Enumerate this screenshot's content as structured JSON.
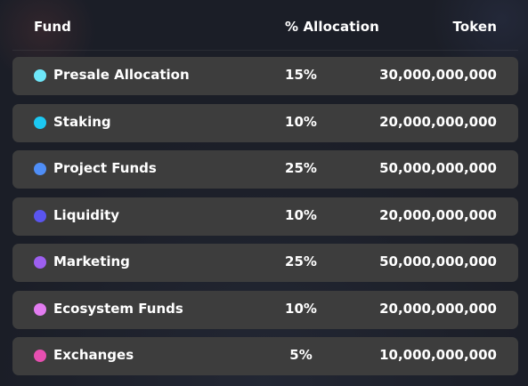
{
  "header": {
    "fund": "Fund",
    "allocation": "% Allocation",
    "token": "Token"
  },
  "rows": [
    {
      "name": "Presale Allocation",
      "allocation": "15%",
      "token": "30,000,000,000",
      "color": "#6ee7f9"
    },
    {
      "name": "Staking",
      "allocation": "10%",
      "token": "20,000,000,000",
      "color": "#1cc8f2"
    },
    {
      "name": "Project Funds",
      "allocation": "25%",
      "token": "50,000,000,000",
      "color": "#4f8ef7"
    },
    {
      "name": "Liquidity",
      "allocation": "10%",
      "token": "20,000,000,000",
      "color": "#5a55f0"
    },
    {
      "name": "Marketing",
      "allocation": "25%",
      "token": "50,000,000,000",
      "color": "#9d5ff0"
    },
    {
      "name": "Ecosystem Funds",
      "allocation": "10%",
      "token": "20,000,000,000",
      "color": "#e27cf0"
    },
    {
      "name": "Exchanges",
      "allocation": "5%",
      "token": "10,000,000,000",
      "color": "#e64fb0"
    }
  ]
}
